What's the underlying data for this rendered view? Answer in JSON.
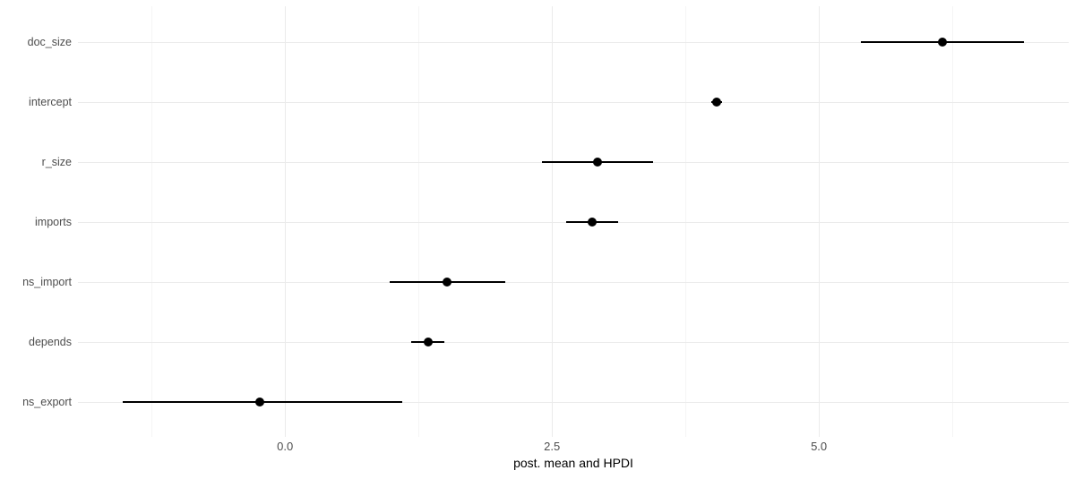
{
  "chart_data": {
    "type": "scatter",
    "subtype": "pointrange-forest-plot",
    "title": "",
    "xlabel": "post. mean and HPDI",
    "ylabel": "",
    "legend_position": "none",
    "grid": true,
    "categories": [
      "doc_size",
      "intercept",
      "r_size",
      "imports",
      "ns_import",
      "depends",
      "ns_export"
    ],
    "points": [
      {
        "label": "doc_size",
        "mean": 6.16,
        "hpdi_low": 5.39,
        "hpdi_high": 6.92
      },
      {
        "label": "intercept",
        "mean": 4.04,
        "hpdi_low": 3.99,
        "hpdi_high": 4.09
      },
      {
        "label": "r_size",
        "mean": 2.93,
        "hpdi_low": 2.41,
        "hpdi_high": 3.45
      },
      {
        "label": "imports",
        "mean": 2.88,
        "hpdi_low": 2.63,
        "hpdi_high": 3.12
      },
      {
        "label": "ns_import",
        "mean": 1.52,
        "hpdi_low": 0.98,
        "hpdi_high": 2.06
      },
      {
        "label": "depends",
        "mean": 1.34,
        "hpdi_low": 1.18,
        "hpdi_high": 1.49
      },
      {
        "label": "ns_export",
        "mean": -0.24,
        "hpdi_low": -1.52,
        "hpdi_high": 1.1
      }
    ],
    "x_axis": {
      "title": "post. mean and HPDI",
      "lim": [
        -1.94,
        7.34
      ],
      "ticks": [
        {
          "value": 0.0,
          "label": "0.0"
        },
        {
          "value": 2.5,
          "label": "2.5"
        },
        {
          "value": 5.0,
          "label": "5.0"
        }
      ],
      "minor_ticks": [
        -1.25,
        1.25,
        3.75,
        6.25
      ]
    },
    "colors": {
      "point": "#000000",
      "interval": "#000000",
      "grid_major": "#EBEBEB",
      "grid_minor": "#F5F5F5",
      "axis_text": "#4D4D4D",
      "axis_title": "#000000",
      "background": "#FFFFFF"
    }
  }
}
